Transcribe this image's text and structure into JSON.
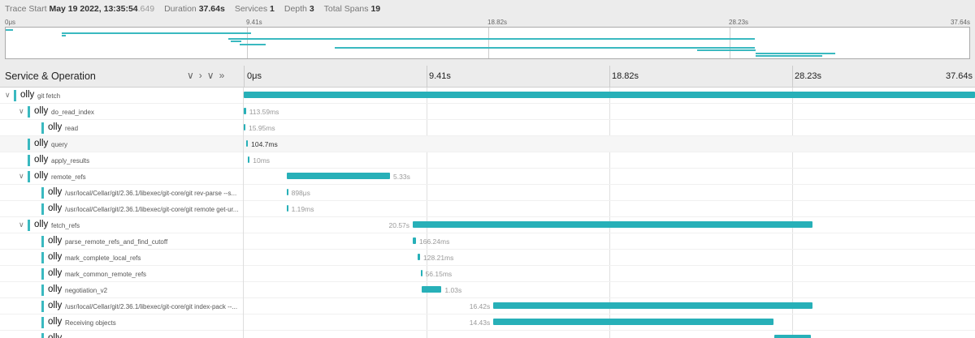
{
  "header": {
    "trace_start_label": "Trace Start",
    "trace_start_main": "May 19 2022, 13:35:54",
    "trace_start_ms": ".649",
    "duration_label": "Duration",
    "duration_value": "37.64s",
    "services_label": "Services",
    "services_value": "1",
    "depth_label": "Depth",
    "depth_value": "3",
    "spans_label": "Total Spans",
    "spans_value": "19"
  },
  "minimap": {
    "ticks": [
      "0μs",
      "9.41s",
      "18.82s",
      "28.23s",
      "37.64s"
    ]
  },
  "columns": {
    "title": "Service & Operation",
    "ticks": [
      "0μs",
      "9.41s",
      "18.82s",
      "28.23s",
      "37.64s"
    ]
  },
  "total_duration_s": 37.64,
  "spans": [
    {
      "depth": 0,
      "toggle": "expanded",
      "service": "olly",
      "operation": "git fetch",
      "start_s": 0,
      "duration_s": 37.64,
      "duration_label": ""
    },
    {
      "depth": 1,
      "toggle": "expanded",
      "service": "olly",
      "operation": "do_read_index",
      "start_s": 0.0,
      "duration_s": 0.1136,
      "duration_label": "113.59ms"
    },
    {
      "depth": 2,
      "toggle": "",
      "service": "olly",
      "operation": "read",
      "start_s": 0.0,
      "duration_s": 0.016,
      "duration_label": "15.95ms"
    },
    {
      "depth": 1,
      "toggle": "",
      "service": "olly",
      "operation": "query",
      "start_s": 0.11,
      "duration_s": 0.1047,
      "duration_label": "104.7ms",
      "highlight": true
    },
    {
      "depth": 1,
      "toggle": "",
      "service": "olly",
      "operation": "apply_results",
      "start_s": 0.22,
      "duration_s": 0.01,
      "duration_label": "10ms"
    },
    {
      "depth": 1,
      "toggle": "expanded",
      "service": "olly",
      "operation": "remote_refs",
      "start_s": 2.2,
      "duration_s": 5.33,
      "duration_label": "5.33s"
    },
    {
      "depth": 2,
      "toggle": "",
      "service": "olly",
      "operation": "/usr/local/Cellar/git/2.36.1/libexec/git-core/git rev-parse --s...",
      "start_s": 2.2,
      "duration_s": 0.0009,
      "duration_label": "898μs"
    },
    {
      "depth": 2,
      "toggle": "",
      "service": "olly",
      "operation": "/usr/local/Cellar/git/2.36.1/libexec/git-core/git remote get-ur...",
      "start_s": 2.2,
      "duration_s": 0.00119,
      "duration_label": "1.19ms"
    },
    {
      "depth": 1,
      "toggle": "expanded",
      "service": "olly",
      "operation": "fetch_refs",
      "start_s": 8.7,
      "duration_s": 20.57,
      "duration_label": "20.57s",
      "label_left": true
    },
    {
      "depth": 2,
      "toggle": "",
      "service": "olly",
      "operation": "parse_remote_refs_and_find_cutoff",
      "start_s": 8.7,
      "duration_s": 0.166,
      "duration_label": "166.24ms"
    },
    {
      "depth": 2,
      "toggle": "",
      "service": "olly",
      "operation": "mark_complete_local_refs",
      "start_s": 8.95,
      "duration_s": 0.128,
      "duration_label": "128.21ms"
    },
    {
      "depth": 2,
      "toggle": "",
      "service": "olly",
      "operation": "mark_common_remote_refs",
      "start_s": 9.1,
      "duration_s": 0.056,
      "duration_label": "56.15ms"
    },
    {
      "depth": 2,
      "toggle": "",
      "service": "olly",
      "operation": "negotiation_v2",
      "start_s": 9.15,
      "duration_s": 1.03,
      "duration_label": "1.03s"
    },
    {
      "depth": 2,
      "toggle": "",
      "service": "olly",
      "operation": "/usr/local/Cellar/git/2.36.1/libexec/git-core/git index-pack --...",
      "start_s": 12.85,
      "duration_s": 16.42,
      "duration_label": "16.42s",
      "label_left": true
    },
    {
      "depth": 2,
      "toggle": "",
      "service": "olly",
      "operation": "Receiving objects",
      "start_s": 12.85,
      "duration_s": 14.43,
      "duration_label": "14.43s",
      "label_left": true
    },
    {
      "depth": 2,
      "toggle": "",
      "service": "olly",
      "operation": "",
      "start_s": 27.3,
      "duration_s": 1.9,
      "duration_label": "",
      "label_left": true
    }
  ],
  "minimap_spans": [
    {
      "start_s": 0.0,
      "duration_s": 0.3,
      "row": 0
    },
    {
      "start_s": 2.2,
      "duration_s": 7.4,
      "row": 1
    },
    {
      "start_s": 2.2,
      "duration_s": 0.15,
      "row": 2
    },
    {
      "start_s": 8.7,
      "duration_s": 20.57,
      "row": 3
    },
    {
      "start_s": 8.8,
      "duration_s": 0.4,
      "row": 4
    },
    {
      "start_s": 9.15,
      "duration_s": 1.0,
      "row": 5
    },
    {
      "start_s": 12.85,
      "duration_s": 16.42,
      "row": 6
    },
    {
      "start_s": 27.0,
      "duration_s": 2.3,
      "row": 7
    },
    {
      "start_s": 29.3,
      "duration_s": 3.1,
      "row": 8
    },
    {
      "start_s": 29.3,
      "duration_s": 2.6,
      "row": 9
    }
  ]
}
